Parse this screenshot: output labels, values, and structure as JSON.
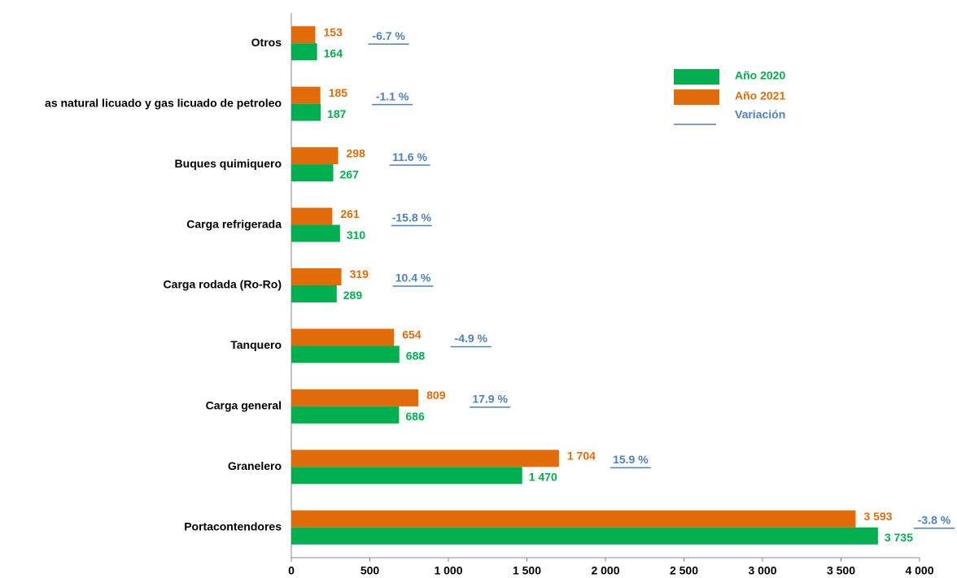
{
  "chart_data": {
    "type": "bar",
    "orientation": "horizontal",
    "categories": [
      "Otros",
      "as natural licuado y gas licuado de petroleo",
      "Buques quimiquero",
      "Carga refrigerada",
      "Carga rodada (Ro-Ro)",
      "Tanquero",
      "Carga general",
      "Granelero",
      "Portacontendores"
    ],
    "series": [
      {
        "name": "Año 2020",
        "color": "#00b050",
        "values": [
          164,
          187,
          267,
          310,
          289,
          688,
          686,
          1470,
          3735
        ],
        "value_labels": [
          "164",
          "187",
          "267",
          "310",
          "289",
          "688",
          "686",
          "1 470",
          "3 735"
        ]
      },
      {
        "name": "Año 2021",
        "color": "#e36c0a",
        "values": [
          153,
          185,
          298,
          261,
          319,
          654,
          809,
          1704,
          3593
        ],
        "value_labels": [
          "153",
          "185",
          "298",
          "261",
          "319",
          "654",
          "809",
          "1 704",
          "3 593"
        ]
      },
      {
        "name": "Variación",
        "color": "#4f81bd",
        "values": [
          -6.7,
          -1.1,
          11.6,
          -15.8,
          10.4,
          -4.9,
          17.9,
          15.9,
          -3.8
        ],
        "value_labels": [
          "-6.7 %",
          "-1.1 %",
          "11.6 %",
          "-15.8 %",
          "10.4 %",
          "-4.9 %",
          "17.9 %",
          "15.9 %",
          "-3.8 %"
        ]
      }
    ],
    "xlim": [
      0,
      4000
    ],
    "xticks": [
      0,
      500,
      {
        "value": 1000,
        "label": "1 000"
      },
      {
        "value": 1500,
        "label": "1 500"
      },
      {
        "value": 2000,
        "label": "2 000"
      },
      {
        "value": 2500,
        "label": "2 500"
      },
      {
        "value": 3000,
        "label": "3 000"
      },
      {
        "value": 3500,
        "label": "3 500"
      },
      {
        "value": 4000,
        "label": "4 000"
      }
    ],
    "legend": "upper right",
    "grid": false
  }
}
